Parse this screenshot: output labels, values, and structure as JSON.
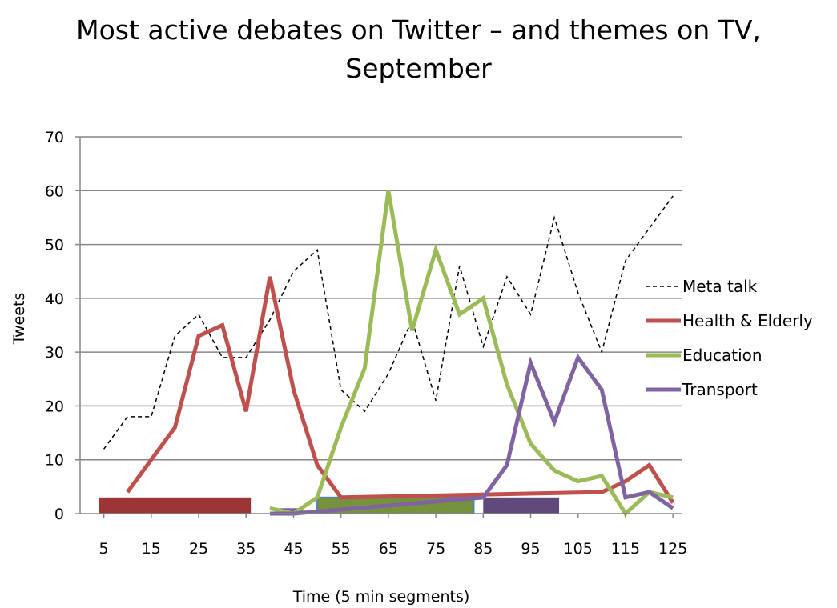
{
  "title_line1": "Most active debates on Twitter – and themes on TV,",
  "title_line2": "September",
  "chart_data": {
    "type": "line",
    "title": "Most active debates on Twitter – and themes on TV, September",
    "xlabel": "Time (5 min segments)",
    "ylabel": "Tweets",
    "ylim": [
      0,
      70
    ],
    "yticks": [
      0,
      10,
      20,
      30,
      40,
      50,
      60,
      70
    ],
    "xticks": [
      5,
      15,
      25,
      35,
      45,
      55,
      65,
      75,
      85,
      95,
      105,
      115,
      125
    ],
    "x_range": [
      0,
      127
    ],
    "grid": true,
    "legend_position": "right",
    "series": [
      {
        "name": "Meta talk",
        "color": "#000000",
        "style": "dashed",
        "points": [
          [
            5,
            12
          ],
          [
            10,
            18
          ],
          [
            15,
            18
          ],
          [
            20,
            33
          ],
          [
            25,
            37
          ],
          [
            30,
            29
          ],
          [
            35,
            29
          ],
          [
            40,
            36
          ],
          [
            45,
            45
          ],
          [
            50,
            49
          ],
          [
            55,
            23
          ],
          [
            60,
            19
          ],
          [
            65,
            26
          ],
          [
            70,
            36
          ],
          [
            75,
            21
          ],
          [
            80,
            46
          ],
          [
            85,
            31
          ],
          [
            90,
            44
          ],
          [
            95,
            37
          ],
          [
            100,
            55
          ],
          [
            105,
            41
          ],
          [
            110,
            30
          ],
          [
            115,
            47
          ],
          [
            120,
            53
          ],
          [
            125,
            59
          ]
        ]
      },
      {
        "name": "Health & Elderly",
        "color": "#c0504d",
        "style": "solid",
        "points": [
          [
            10,
            4
          ],
          [
            15,
            10
          ],
          [
            20,
            16
          ],
          [
            25,
            33
          ],
          [
            30,
            35
          ],
          [
            35,
            19
          ],
          [
            40,
            44
          ],
          [
            45,
            23
          ],
          [
            50,
            9
          ],
          [
            55,
            3
          ],
          [
            110,
            4
          ],
          [
            115,
            6
          ],
          [
            120,
            9
          ],
          [
            125,
            2
          ]
        ]
      },
      {
        "name": "Education",
        "color": "#9bbb59",
        "style": "solid",
        "points": [
          [
            40,
            1
          ],
          [
            45,
            0
          ],
          [
            50,
            3
          ],
          [
            55,
            16
          ],
          [
            60,
            27
          ],
          [
            65,
            60
          ],
          [
            70,
            34
          ],
          [
            75,
            49
          ],
          [
            80,
            37
          ],
          [
            85,
            40
          ],
          [
            90,
            24
          ],
          [
            95,
            13
          ],
          [
            100,
            8
          ],
          [
            105,
            6
          ],
          [
            110,
            7
          ],
          [
            115,
            0
          ],
          [
            120,
            4
          ],
          [
            125,
            3
          ]
        ]
      },
      {
        "name": "Transport",
        "color": "#8064a2",
        "style": "solid",
        "points": [
          [
            40,
            0
          ],
          [
            45,
            0
          ],
          [
            85,
            3
          ],
          [
            90,
            9
          ],
          [
            95,
            28
          ],
          [
            100,
            17
          ],
          [
            105,
            29
          ],
          [
            110,
            23
          ],
          [
            115,
            3
          ],
          [
            120,
            4
          ],
          [
            125,
            1
          ]
        ]
      }
    ],
    "tv_theme_bars": [
      {
        "x_start": 4,
        "x_end": 36,
        "y_low": 0,
        "y_high": 3,
        "color": "#9c3535"
      },
      {
        "x_start": 42,
        "x_end": 47,
        "y_low": 0,
        "y_high": 1,
        "color": "#7e5ca0"
      },
      {
        "x_start": 50,
        "x_end": 83,
        "y_low": 0,
        "y_high": 3,
        "color": "#76923c",
        "outline": "#4f81bd"
      },
      {
        "x_start": 85,
        "x_end": 101,
        "y_low": 0,
        "y_high": 3,
        "color": "#5f4a7b"
      }
    ]
  }
}
